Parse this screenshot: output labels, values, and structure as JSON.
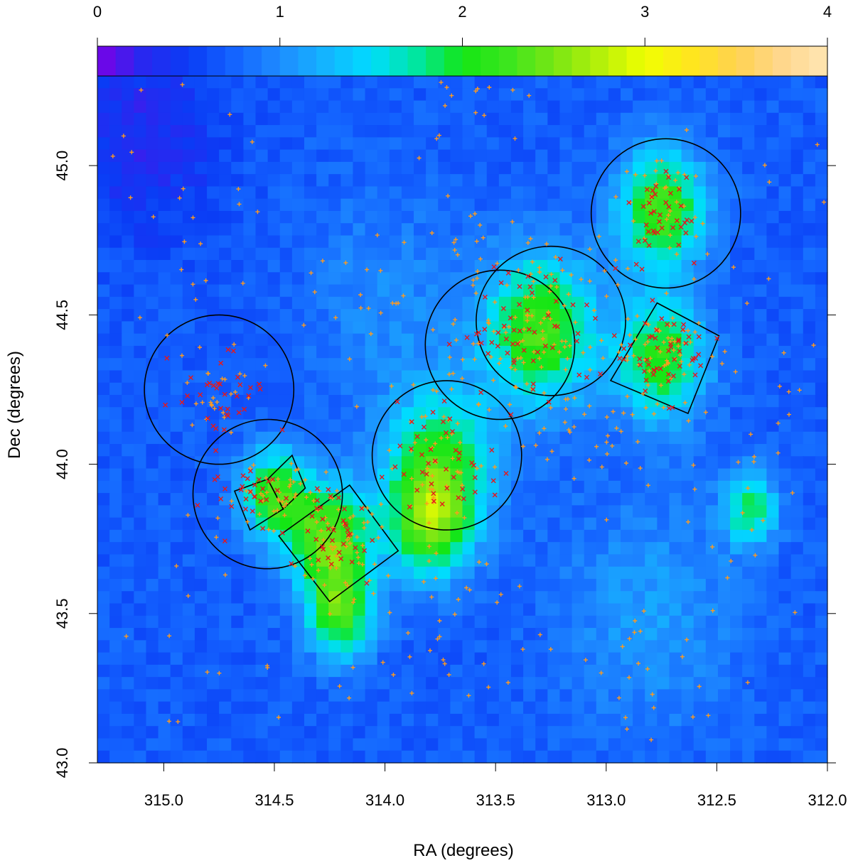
{
  "chart_data": {
    "type": "heatmap",
    "title": "",
    "xlabel": "RA (degrees)",
    "ylabel": "Dec (degrees)",
    "xlim": [
      315.3,
      312.0
    ],
    "ylim": [
      43.0,
      45.3
    ],
    "x_ticks": [
      315.0,
      314.5,
      314.0,
      313.5,
      313.0,
      312.5,
      312.0
    ],
    "x_tick_labels": [
      "315.0",
      "314.5",
      "314.0",
      "313.5",
      "313.0",
      "312.5",
      "312.0"
    ],
    "y_ticks": [
      43.0,
      43.5,
      44.0,
      44.5,
      45.0
    ],
    "y_tick_labels": [
      "43.0",
      "43.5",
      "44.0",
      "44.5",
      "45.0"
    ],
    "colorbar": {
      "range": [
        0,
        4
      ],
      "ticks": [
        0,
        1,
        2,
        3,
        4
      ],
      "tick_labels": [
        "0",
        "1",
        "2",
        "3",
        "4"
      ],
      "placement": "top",
      "colors": [
        "#7a00e6",
        "#2828f0",
        "#0a3cf5",
        "#1464ff",
        "#1e8cff",
        "#14b4ff",
        "#00dcff",
        "#00e6a0",
        "#14e614",
        "#3ce61e",
        "#78e614",
        "#b4f00a",
        "#f0ff00",
        "#ffe61e",
        "#ffd250",
        "#ffd78c",
        "#ffe6b4"
      ]
    },
    "background_value": 0.7,
    "hotspots": [
      {
        "ra": 313.3,
        "dec": 44.45,
        "value": 1.6,
        "sigma": 0.25
      },
      {
        "ra": 312.75,
        "dec": 44.85,
        "value": 1.6,
        "sigma": 0.2
      },
      {
        "ra": 312.75,
        "dec": 44.35,
        "value": 1.4,
        "sigma": 0.2
      },
      {
        "ra": 313.75,
        "dec": 44.0,
        "value": 1.3,
        "sigma": 0.25
      },
      {
        "ra": 314.25,
        "dec": 43.75,
        "value": 1.7,
        "sigma": 0.18
      },
      {
        "ra": 314.5,
        "dec": 43.9,
        "value": 1.5,
        "sigma": 0.15
      },
      {
        "ra": 314.2,
        "dec": 43.5,
        "value": 1.5,
        "sigma": 0.15
      },
      {
        "ra": 313.8,
        "dec": 43.8,
        "value": 1.4,
        "sigma": 0.18
      },
      {
        "ra": 312.35,
        "dec": 43.85,
        "value": 1.2,
        "sigma": 0.12
      },
      {
        "ra": 314.0,
        "dec": 44.55,
        "value": 0.3,
        "sigma": 0.35
      },
      {
        "ra": 315.1,
        "dec": 45.1,
        "value": -0.4,
        "sigma": 0.35
      },
      {
        "ra": 312.8,
        "dec": 43.5,
        "value": 0.4,
        "sigma": 0.4
      }
    ],
    "circles": [
      {
        "ra": 314.75,
        "dec": 44.25,
        "radius_dec": 0.25
      },
      {
        "ra": 314.53,
        "dec": 43.9,
        "radius_dec": 0.25
      },
      {
        "ra": 313.72,
        "dec": 44.03,
        "radius_dec": 0.25
      },
      {
        "ra": 313.48,
        "dec": 44.4,
        "radius_dec": 0.25
      },
      {
        "ra": 313.25,
        "dec": 44.48,
        "radius_dec": 0.25
      },
      {
        "ra": 312.73,
        "dec": 44.84,
        "radius_dec": 0.25
      }
    ],
    "rectangles": [
      {
        "corners": [
          [
            314.61,
            43.78
          ],
          [
            314.68,
            43.91
          ],
          [
            314.53,
            43.95
          ],
          [
            314.46,
            43.85
          ]
        ]
      },
      {
        "corners": [
          [
            314.53,
            43.95
          ],
          [
            314.42,
            44.03
          ],
          [
            314.36,
            43.92
          ],
          [
            314.46,
            43.85
          ]
        ]
      },
      {
        "corners": [
          [
            314.25,
            43.54
          ],
          [
            313.94,
            43.71
          ],
          [
            314.16,
            43.93
          ],
          [
            314.48,
            43.76
          ]
        ]
      },
      {
        "corners": [
          [
            312.63,
            44.17
          ],
          [
            312.49,
            44.43
          ],
          [
            312.77,
            44.54
          ],
          [
            312.98,
            44.28
          ]
        ]
      }
    ],
    "series": [
      {
        "marker": "x",
        "color": "#e4181c",
        "clusters": [
          {
            "ra": 314.75,
            "dec": 44.25,
            "spread_ra": 0.14,
            "spread_dec": 0.11,
            "n": 35
          },
          {
            "ra": 314.55,
            "dec": 43.88,
            "spread_ra": 0.13,
            "spread_dec": 0.08,
            "n": 30
          },
          {
            "ra": 314.2,
            "dec": 43.75,
            "spread_ra": 0.1,
            "spread_dec": 0.1,
            "n": 35
          },
          {
            "ra": 313.72,
            "dec": 44.0,
            "spread_ra": 0.14,
            "spread_dec": 0.13,
            "n": 45
          },
          {
            "ra": 313.35,
            "dec": 44.45,
            "spread_ra": 0.2,
            "spread_dec": 0.14,
            "n": 60
          },
          {
            "ra": 312.75,
            "dec": 44.38,
            "spread_ra": 0.12,
            "spread_dec": 0.1,
            "n": 50
          },
          {
            "ra": 312.72,
            "dec": 44.85,
            "spread_ra": 0.13,
            "spread_dec": 0.13,
            "n": 40
          }
        ]
      },
      {
        "marker": "+",
        "color": "#ff9a1e",
        "clusters": [
          {
            "ra": 314.75,
            "dec": 44.22,
            "spread_ra": 0.13,
            "spread_dec": 0.1,
            "n": 25
          },
          {
            "ra": 314.5,
            "dec": 43.88,
            "spread_ra": 0.14,
            "spread_dec": 0.08,
            "n": 40
          },
          {
            "ra": 314.2,
            "dec": 43.75,
            "spread_ra": 0.12,
            "spread_dec": 0.12,
            "n": 55
          },
          {
            "ra": 313.75,
            "dec": 44.0,
            "spread_ra": 0.18,
            "spread_dec": 0.2,
            "n": 55
          },
          {
            "ra": 313.35,
            "dec": 44.42,
            "spread_ra": 0.25,
            "spread_dec": 0.18,
            "n": 110
          },
          {
            "ra": 312.75,
            "dec": 44.38,
            "spread_ra": 0.12,
            "spread_dec": 0.1,
            "n": 55
          },
          {
            "ra": 312.75,
            "dec": 44.85,
            "spread_ra": 0.13,
            "spread_dec": 0.15,
            "n": 35
          },
          {
            "ra": 313.0,
            "dec": 44.1,
            "spread_ra": 0.2,
            "spread_dec": 0.15,
            "n": 30
          },
          {
            "ra": 314.1,
            "dec": 44.55,
            "spread_ra": 0.2,
            "spread_dec": 0.1,
            "n": 20
          },
          {
            "ra": 313.65,
            "dec": 44.75,
            "spread_ra": 0.15,
            "spread_dec": 0.15,
            "n": 20
          },
          {
            "ra": 313.6,
            "dec": 45.2,
            "spread_ra": 0.2,
            "spread_dec": 0.1,
            "n": 15
          },
          {
            "ra": 313.7,
            "dec": 43.4,
            "spread_ra": 0.35,
            "spread_dec": 0.25,
            "n": 35
          },
          {
            "ra": 312.9,
            "dec": 43.3,
            "spread_ra": 0.3,
            "spread_dec": 0.2,
            "n": 25
          },
          {
            "ra": 312.3,
            "dec": 43.8,
            "spread_ra": 0.2,
            "spread_dec": 0.3,
            "n": 20
          },
          {
            "ra": 314.9,
            "dec": 44.9,
            "spread_ra": 0.3,
            "spread_dec": 0.3,
            "n": 30
          },
          {
            "ra": 314.8,
            "dec": 43.5,
            "spread_ra": 0.3,
            "spread_dec": 0.3,
            "n": 15
          },
          {
            "ra": 312.3,
            "dec": 44.5,
            "spread_ra": 0.2,
            "spread_dec": 0.4,
            "n": 20
          }
        ]
      }
    ]
  }
}
